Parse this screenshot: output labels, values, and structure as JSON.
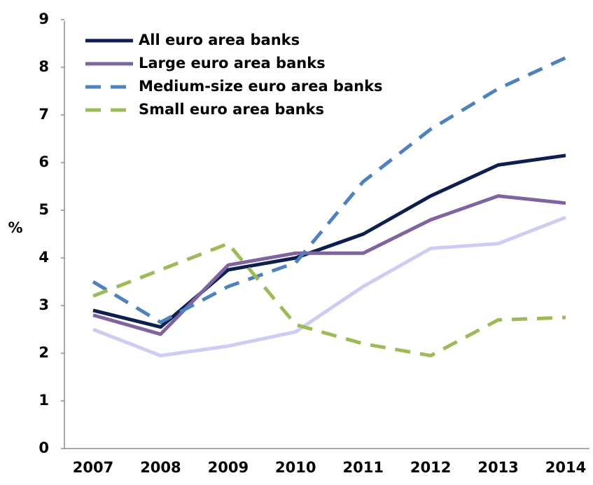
{
  "chart_data": {
    "type": "line",
    "y_label": "%",
    "categories": [
      "2007",
      "2008",
      "2009",
      "2010",
      "2011",
      "2012",
      "2013",
      "2014"
    ],
    "series": [
      {
        "name": "All euro area banks",
        "color": "#0d1f4f",
        "dash": false,
        "values": [
          2.9,
          2.55,
          3.75,
          4.0,
          4.5,
          5.3,
          5.95,
          6.15
        ]
      },
      {
        "name": "Large euro area banks",
        "color": "#8064a2",
        "dash": false,
        "values": [
          2.8,
          2.4,
          3.85,
          4.1,
          4.1,
          4.8,
          5.3,
          5.15
        ]
      },
      {
        "name": "Medium-size euro area banks",
        "color": "#4f81bd",
        "dash": true,
        "values": [
          3.5,
          2.65,
          3.4,
          3.9,
          5.6,
          6.7,
          7.55,
          8.2
        ]
      },
      {
        "name": "Small euro area banks",
        "color": "#9bbb59",
        "dash": true,
        "values": [
          3.2,
          3.75,
          4.3,
          2.6,
          2.2,
          1.95,
          2.7,
          2.75
        ]
      },
      {
        "color": "#ccccf5",
        "dash": false,
        "values": [
          2.5,
          1.95,
          2.15,
          2.45,
          3.4,
          4.2,
          4.3,
          4.85
        ]
      }
    ],
    "ylim": [
      0,
      9
    ],
    "yticks": [
      0,
      1,
      2,
      3,
      4,
      5,
      6,
      7,
      8,
      9
    ],
    "grid": false,
    "legend": "top-left"
  }
}
